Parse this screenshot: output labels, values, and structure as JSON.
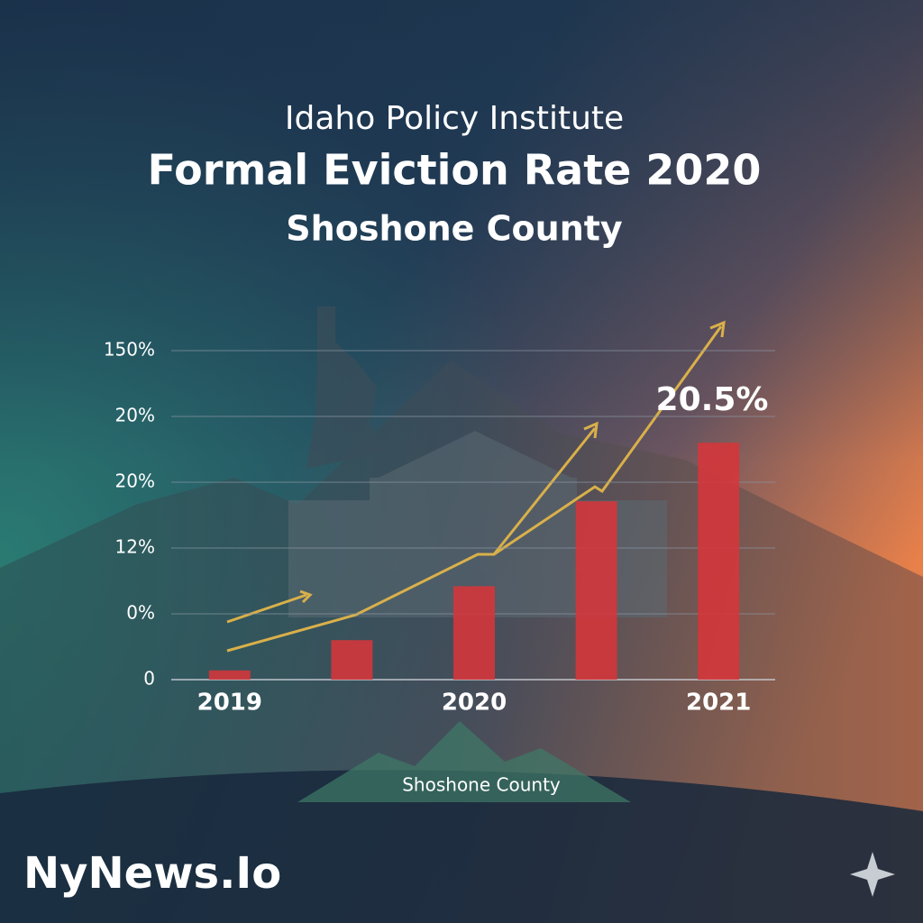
{
  "chart_data": {
    "type": "bar",
    "supertitle": "Idaho Policy Institute",
    "title": "Formal Eviction Rate 2020",
    "subtitle": "Shoshone County",
    "annotation": "20.5%",
    "footer_label": "Shoshone County",
    "brand": "NyNews.Io",
    "categories": [
      "2019",
      null,
      "2020",
      null,
      "2021"
    ],
    "values": [
      0.14,
      0.6,
      1.42,
      2.71,
      3.6
    ],
    "color": "#d6363a",
    "ylim": [
      0,
      5
    ],
    "yticks": [
      0,
      {
        "value": 1,
        "label": "0%"
      },
      {
        "value": 2,
        "label": "12%"
      },
      {
        "value": 3,
        "label": "20%"
      },
      {
        "value": 4,
        "label": "20%"
      },
      {
        "value": 5,
        "label": "150%"
      }
    ],
    "grid": true
  }
}
